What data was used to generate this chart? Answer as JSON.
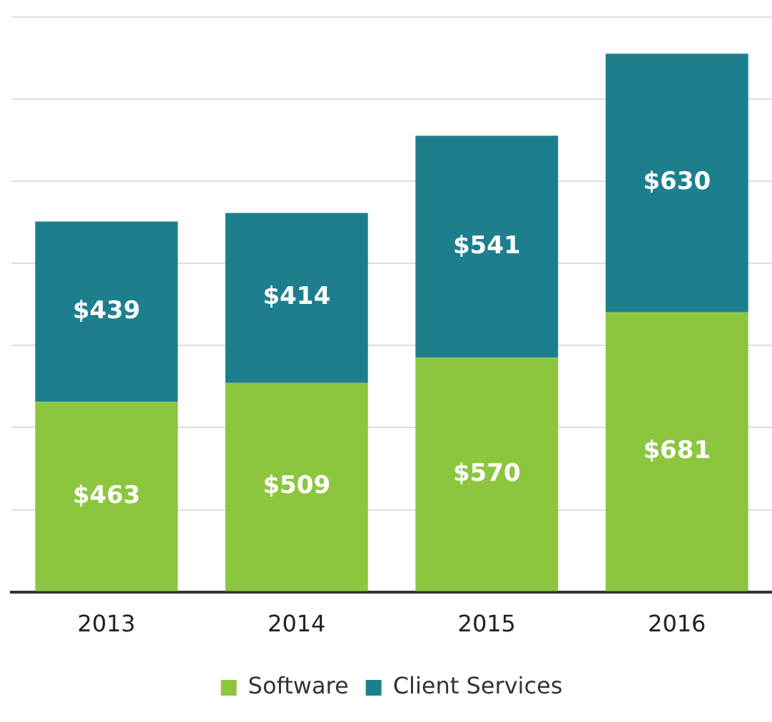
{
  "chart_data": {
    "type": "bar",
    "stacked": true,
    "categories": [
      "2013",
      "2014",
      "2015",
      "2016"
    ],
    "series": [
      {
        "name": "Software",
        "color": "#8cc63f",
        "values": [
          463,
          509,
          570,
          681
        ],
        "value_labels": [
          "$463",
          "$509",
          "$570",
          "$681"
        ]
      },
      {
        "name": "Client Services",
        "color": "#1d7f8e",
        "values": [
          439,
          414,
          541,
          630
        ],
        "value_labels": [
          "$439",
          "$414",
          "$541",
          "$630"
        ]
      }
    ],
    "ylim": [
      0,
      1400
    ],
    "yticks": [
      {
        "value": 0,
        "label": null
      },
      {
        "value": 200,
        "label": null
      },
      {
        "value": 400,
        "label": null
      },
      {
        "value": 600,
        "label": null
      },
      {
        "value": 800,
        "label": null
      },
      {
        "value": 1000,
        "label": null
      },
      {
        "value": 1200,
        "label": null
      },
      {
        "value": 1400,
        "label": null
      }
    ],
    "grid": "y",
    "tick_labels": "x",
    "legend": "bottom"
  }
}
